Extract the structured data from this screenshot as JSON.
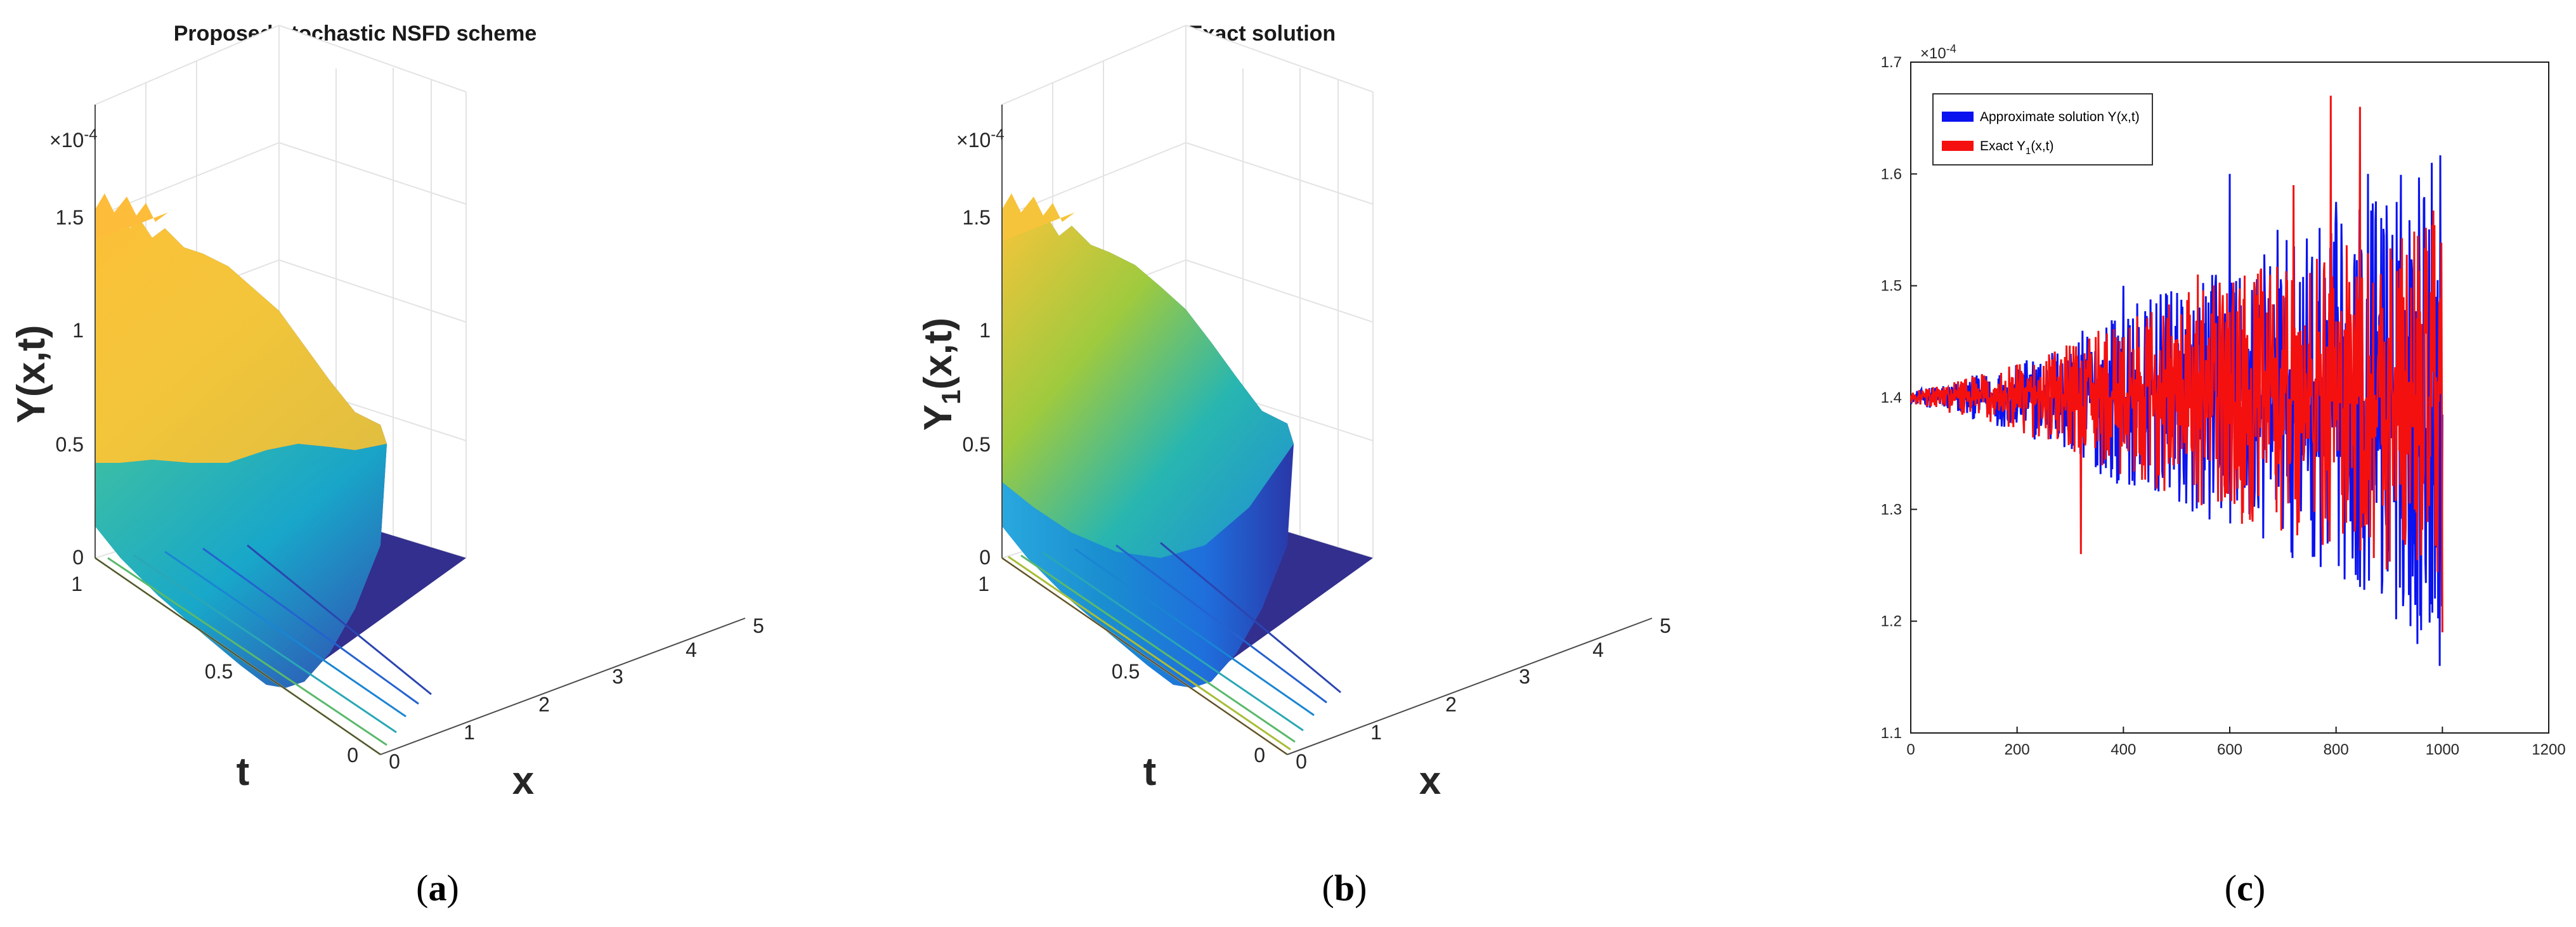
{
  "panels": [
    {
      "id": "a",
      "caption": "a",
      "title": "Proposed stochastic NSFD scheme",
      "zlabel": "Y(x,t)",
      "xlabel": "x",
      "ylabel": "t",
      "exponent": "×10",
      "exponent_power": "-4",
      "z_ticks": [
        "0",
        "0.5",
        "1",
        "1.5"
      ],
      "x_ticks": [
        "0",
        "1",
        "2",
        "3",
        "4",
        "5"
      ],
      "t_ticks": [
        "0",
        "0.5",
        "1"
      ]
    },
    {
      "id": "b",
      "caption": "b",
      "title": "Exact solution",
      "zlabel": "Y",
      "zlabel_sub": "1",
      "zlabel_suffix": "(x,t)",
      "xlabel": "x",
      "ylabel": "t",
      "exponent": "×10",
      "exponent_power": "-4",
      "z_ticks": [
        "0",
        "0.5",
        "1",
        "1.5"
      ],
      "x_ticks": [
        "0",
        "1",
        "2",
        "3",
        "4",
        "5"
      ],
      "t_ticks": [
        "0",
        "0.5",
        "1"
      ]
    }
  ],
  "panel_c": {
    "caption": "c",
    "exponent": "×10",
    "exponent_power": "-4",
    "legend": [
      {
        "label": "Approximate solution Y(x,t)",
        "color": "#0a12f0"
      },
      {
        "label": "Exact Y",
        "label_sub": "1",
        "label_suffix": "(x,t)",
        "color": "#f51010"
      }
    ]
  },
  "chart_data": [
    {
      "type": "surface",
      "title": "Proposed stochastic NSFD scheme",
      "xlabel": "x",
      "ylabel": "t",
      "zlabel": "Y(x,t)",
      "xlim": [
        0,
        5
      ],
      "ylim": [
        0,
        1
      ],
      "zlim": [
        0,
        1.5
      ],
      "z_scale": "1e-4",
      "profile_x": [
        0,
        0.2,
        0.4,
        0.6,
        0.8,
        1.0,
        1.2,
        1.5,
        2.0
      ],
      "profile_z_at_t1": [
        1.4,
        1.05,
        0.65,
        0.35,
        0.15,
        0.05,
        0.01,
        0,
        0
      ],
      "profile_z_at_t0": [
        1.4,
        0.45,
        0.1,
        0.02,
        0,
        0,
        0,
        0,
        0
      ],
      "colormap": "parula"
    },
    {
      "type": "surface",
      "title": "Exact solution",
      "xlabel": "x",
      "ylabel": "t",
      "zlabel": "Y1(x,t)",
      "xlim": [
        0,
        5
      ],
      "ylim": [
        0,
        1
      ],
      "zlim": [
        0,
        1.5
      ],
      "z_scale": "1e-4",
      "profile_x": [
        0,
        0.2,
        0.4,
        0.6,
        0.8,
        1.0,
        1.2,
        1.5,
        2.0
      ],
      "profile_z_at_t1": [
        1.4,
        1.05,
        0.65,
        0.35,
        0.15,
        0.05,
        0.01,
        0,
        0
      ],
      "profile_z_at_t0": [
        1.4,
        0.45,
        0.1,
        0.02,
        0,
        0,
        0,
        0,
        0
      ],
      "colormap": "parula"
    },
    {
      "type": "line",
      "title": "",
      "xlabel": "",
      "ylabel": "",
      "xlim": [
        0,
        1200
      ],
      "ylim": [
        1.1,
        1.7
      ],
      "y_scale": "1e-4",
      "x_ticks": [
        0,
        200,
        400,
        600,
        800,
        1000,
        1200
      ],
      "y_ticks": [
        1.1,
        1.2,
        1.3,
        1.4,
        1.5,
        1.6,
        1.7
      ],
      "x_range": [
        0,
        1000
      ],
      "base_value": 1.4,
      "series": [
        {
          "name": "Approximate solution Y(x,t)",
          "color": "#0a12f0",
          "envelope_x": [
            0,
            200,
            400,
            600,
            800,
            1000
          ],
          "envelope_amplitude": [
            0.005,
            0.03,
            0.08,
            0.12,
            0.16,
            0.24
          ],
          "peaks": [
            [
              400,
              1.5
            ],
            [
              600,
              1.6
            ],
            [
              690,
              1.55
            ],
            [
              800,
              1.575
            ],
            [
              860,
              1.6
            ],
            [
              980,
              1.61
            ],
            [
              995,
              1.16
            ],
            [
              920,
              1.23
            ]
          ]
        },
        {
          "name": "Exact Y1(x,t)",
          "color": "#f51010",
          "envelope_x": [
            0,
            200,
            400,
            600,
            800,
            1000
          ],
          "envelope_amplitude": [
            0.005,
            0.03,
            0.07,
            0.11,
            0.14,
            0.17
          ],
          "peaks": [
            [
              790,
              1.67
            ],
            [
              845,
              1.66
            ],
            [
              720,
              1.59
            ],
            [
              1000,
              1.19
            ],
            [
              320,
              1.26
            ],
            [
              540,
              1.51
            ]
          ]
        }
      ]
    }
  ]
}
